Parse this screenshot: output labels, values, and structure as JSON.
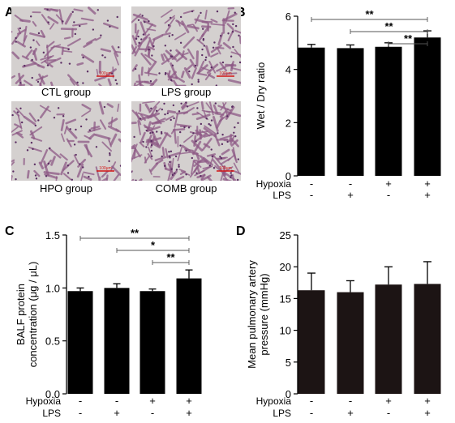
{
  "panel_labels": [
    "A",
    "B",
    "C",
    "D"
  ],
  "micrographs": [
    {
      "caption": "CTL group",
      "tissue": "sparse",
      "scale_bar": "100μm"
    },
    {
      "caption": "LPS group",
      "tissue": "medium",
      "scale_bar": "100μm"
    },
    {
      "caption": "HPO group",
      "tissue": "sparse",
      "scale_bar": "100μm"
    },
    {
      "caption": "COMB group",
      "tissue": "dense",
      "scale_bar": "100μm"
    }
  ],
  "colors": {
    "bar_fill": "#000000",
    "bar_fill_d": "#1c1414",
    "photo_bg": "#d4d0cf",
    "tissue": "#8e5a86",
    "scale_bar": "#d21414"
  },
  "chart_data": [
    {
      "type": "bar",
      "panel": "B",
      "ylabel": "Wet / Dry ratio",
      "ylim": [
        0,
        6
      ],
      "yticks": [
        "0",
        "2",
        "4",
        "6"
      ],
      "categories": [
        "CTL",
        "LPS",
        "HPO",
        "COMB"
      ],
      "values": [
        4.82,
        4.8,
        4.85,
        5.2
      ],
      "errors": [
        0.12,
        0.12,
        0.15,
        0.25
      ],
      "factors": [
        {
          "name": "Hypoxia",
          "levels": [
            "-",
            "-",
            "+",
            "+"
          ]
        },
        {
          "name": "LPS",
          "levels": [
            "-",
            "+",
            "-",
            "+"
          ]
        }
      ],
      "significance": [
        {
          "from": 0,
          "to": 3,
          "label": "**"
        },
        {
          "from": 1,
          "to": 3,
          "label": "**"
        },
        {
          "from": 2,
          "to": 3,
          "label": "**"
        }
      ]
    },
    {
      "type": "bar",
      "panel": "C",
      "ylabel": "BALF protein concentration (μg / μL)",
      "ylabel_lines": [
        "BALF protein",
        "concentration (μg / μL)"
      ],
      "ylim": [
        0,
        1.5
      ],
      "yticks": [
        "0.0",
        "0.5",
        "1.0",
        "1.5"
      ],
      "categories": [
        "CTL",
        "LPS",
        "HPO",
        "COMB"
      ],
      "values": [
        0.97,
        1.0,
        0.97,
        1.09
      ],
      "errors": [
        0.03,
        0.04,
        0.02,
        0.08
      ],
      "factors": [
        {
          "name": "Hypoxia",
          "levels": [
            "-",
            "-",
            "+",
            "+"
          ]
        },
        {
          "name": "LPS",
          "levels": [
            "-",
            "+",
            "-",
            "+"
          ]
        }
      ],
      "significance": [
        {
          "from": 0,
          "to": 3,
          "label": "**"
        },
        {
          "from": 1,
          "to": 3,
          "label": "*"
        },
        {
          "from": 2,
          "to": 3,
          "label": "**"
        }
      ]
    },
    {
      "type": "bar",
      "panel": "D",
      "ylabel": "Mean pulmonary artery pressure (mmHg)",
      "ylabel_lines": [
        "Mean pulmonary artery",
        "pressure (mmHg)"
      ],
      "ylim": [
        0,
        25
      ],
      "yticks": [
        "0",
        "5",
        "10",
        "15",
        "20",
        "25"
      ],
      "categories": [
        "CTL",
        "LPS",
        "HPO",
        "COMB"
      ],
      "values": [
        16.3,
        16.0,
        17.2,
        17.3
      ],
      "errors": [
        2.7,
        1.8,
        2.8,
        3.5
      ],
      "factors": [
        {
          "name": "Hypoxia",
          "levels": [
            "-",
            "-",
            "+",
            "+"
          ]
        },
        {
          "name": "LPS",
          "levels": [
            "-",
            "+",
            "-",
            "+"
          ]
        }
      ],
      "significance": []
    }
  ]
}
